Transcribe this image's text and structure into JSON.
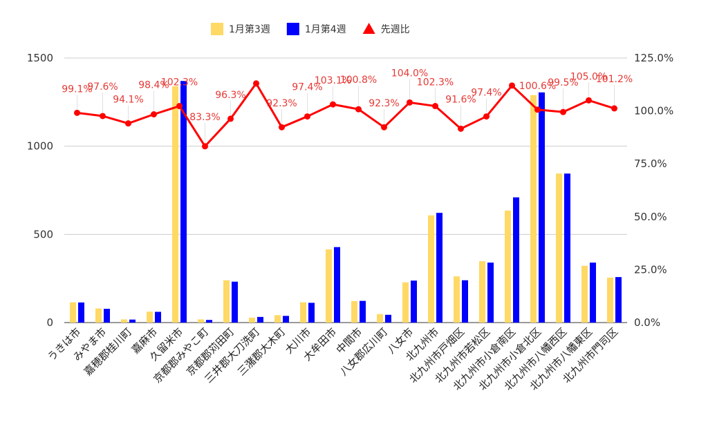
{
  "chart_data": {
    "type": "bar",
    "title": "",
    "xlabel": "",
    "ylabel": "",
    "legend_position": "top-center",
    "grid": true,
    "ylim_left": [
      0,
      1500
    ],
    "ylim_right": [
      0,
      1.25
    ],
    "left_ticks": [
      "0",
      "500",
      "1000",
      "1500"
    ],
    "left_tick_values": [
      0,
      500,
      1000,
      1500
    ],
    "right_ticks": [
      "0.0%",
      "25.0%",
      "50.0%",
      "75.0%",
      "100.0%",
      "125.0%"
    ],
    "right_tick_values": [
      0,
      0.25,
      0.5,
      0.75,
      1.0,
      1.25
    ],
    "categories": [
      "うきは市",
      "みやま市",
      "嘉穂郡桂川町",
      "嘉麻市",
      "久留米市",
      "京都郡みやこ町",
      "京都郡苅田町",
      "三井郡大刀洗町",
      "三潴郡大木町",
      "大川市",
      "大牟田市",
      "中間市",
      "八女郡広川町",
      "八女市",
      "北九州市",
      "北九州市戸畑区",
      "北九州市若松区",
      "北九州市小倉南区",
      "北九州市小倉北区",
      "北九州市八幡西区",
      "北九州市八幡東区",
      "北九州市門司区"
    ],
    "series": [
      {
        "name": "1月第3週",
        "kind": "bar",
        "axis": "left",
        "color": "#ffd966",
        "values": [
          115,
          80,
          18,
          62,
          1340,
          18,
          240,
          28,
          42,
          115,
          415,
          122,
          48,
          228,
          608,
          262,
          348,
          635,
          1290,
          845,
          322,
          255
        ]
      },
      {
        "name": "1月第4週",
        "kind": "bar",
        "axis": "left",
        "color": "#0000ff",
        "values": [
          114,
          78,
          17,
          61,
          1370,
          15,
          232,
          32,
          38,
          112,
          428,
          123,
          44,
          238,
          622,
          240,
          340,
          710,
          1305,
          845,
          340,
          258
        ]
      },
      {
        "name": "先週比",
        "kind": "line",
        "axis": "right",
        "color": "#ff0000",
        "values": [
          0.991,
          0.976,
          0.941,
          0.984,
          1.023,
          0.833,
          0.963,
          1.13,
          0.923,
          0.974,
          1.031,
          1.008,
          0.923,
          1.04,
          1.023,
          0.916,
          0.974,
          1.12,
          1.006,
          0.995,
          1.05,
          1.012
        ],
        "labels": [
          "99.1%",
          "97.6%",
          "94.1%",
          "98.4%",
          "102.3%",
          "83.3%",
          "96.3%",
          "",
          "92.3%",
          "97.4%",
          "103.1%",
          "100.8%",
          "92.3%",
          "104.0%",
          "102.3%",
          "91.6%",
          "97.4%",
          "",
          "100.6%",
          "99.5%",
          "105.0%",
          "101.2%"
        ]
      }
    ]
  }
}
